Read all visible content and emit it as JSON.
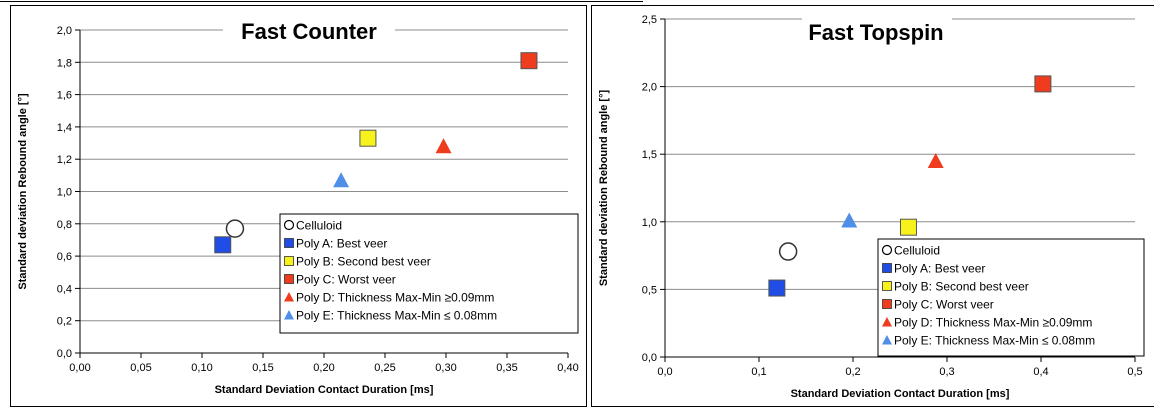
{
  "chart_data": [
    {
      "type": "scatter",
      "title": "Fast Counter",
      "xlabel": "Standard Deviation Contact Duration [ms]",
      "ylabel": "Standard deviation Rebound angle [°]",
      "xlim": [
        0,
        0.4
      ],
      "ylim": [
        0,
        2.0
      ],
      "xticks": [
        "0,00",
        "0,05",
        "0,10",
        "0,15",
        "0,20",
        "0,25",
        "0,30",
        "0,35",
        "0,40"
      ],
      "yticks": [
        "0,0",
        "0,2",
        "0,4",
        "0,6",
        "0,8",
        "1,0",
        "1,2",
        "1,4",
        "1,6",
        "1,8",
        "2,0"
      ],
      "grid": "horizontal",
      "legend_position": "bottom-right",
      "series": [
        {
          "name": "Celluloid",
          "marker": "circle-open",
          "color": "#ffffff",
          "x": 0.127,
          "y": 0.77
        },
        {
          "name": "Poly A: Best veer",
          "marker": "square",
          "color": "#1f4de6",
          "x": 0.117,
          "y": 0.67
        },
        {
          "name": "Poly B: Second best veer",
          "marker": "square",
          "color": "#f7f21c",
          "x": 0.236,
          "y": 1.33
        },
        {
          "name": "Poly C: Worst veer",
          "marker": "square",
          "color": "#f03c1e",
          "x": 0.368,
          "y": 1.81
        },
        {
          "name": "Poly D: Thickness Max-Min ≥0.09mm",
          "marker": "triangle",
          "color": "#f03c1e",
          "x": 0.298,
          "y": 1.28
        },
        {
          "name": "Poly E: Thickness Max-Min ≤ 0.08mm",
          "marker": "triangle",
          "color": "#4f8fe8",
          "x": 0.214,
          "y": 1.07
        }
      ]
    },
    {
      "type": "scatter",
      "title": "Fast Topspin",
      "xlabel": "Standard Deviation Contact Duration [ms]",
      "ylabel": "Standard deviation Rebound angle [°]",
      "xlim": [
        0,
        0.5
      ],
      "ylim": [
        0,
        2.5
      ],
      "xticks": [
        "0,0",
        "0,1",
        "0,2",
        "0,3",
        "0,4",
        "0,5"
      ],
      "yticks": [
        "0,0",
        "0,5",
        "1,0",
        "1,5",
        "2,0",
        "2,5"
      ],
      "grid": "horizontal",
      "legend_position": "bottom-right",
      "series": [
        {
          "name": "Celluloid",
          "marker": "circle-open",
          "color": "#ffffff",
          "x": 0.131,
          "y": 0.78
        },
        {
          "name": "Poly A: Best veer",
          "marker": "square",
          "color": "#1f4de6",
          "x": 0.119,
          "y": 0.51
        },
        {
          "name": "Poly B: Second best veer",
          "marker": "square",
          "color": "#f7f21c",
          "x": 0.259,
          "y": 0.96
        },
        {
          "name": "Poly C: Worst veer",
          "marker": "square",
          "color": "#f03c1e",
          "x": 0.402,
          "y": 2.02
        },
        {
          "name": "Poly D: Thickness Max-Min ≥0.09mm",
          "marker": "triangle",
          "color": "#f03c1e",
          "x": 0.288,
          "y": 1.45
        },
        {
          "name": "Poly E: Thickness Max-Min ≤ 0.08mm",
          "marker": "triangle",
          "color": "#4f8fe8",
          "x": 0.196,
          "y": 1.01
        }
      ]
    }
  ]
}
